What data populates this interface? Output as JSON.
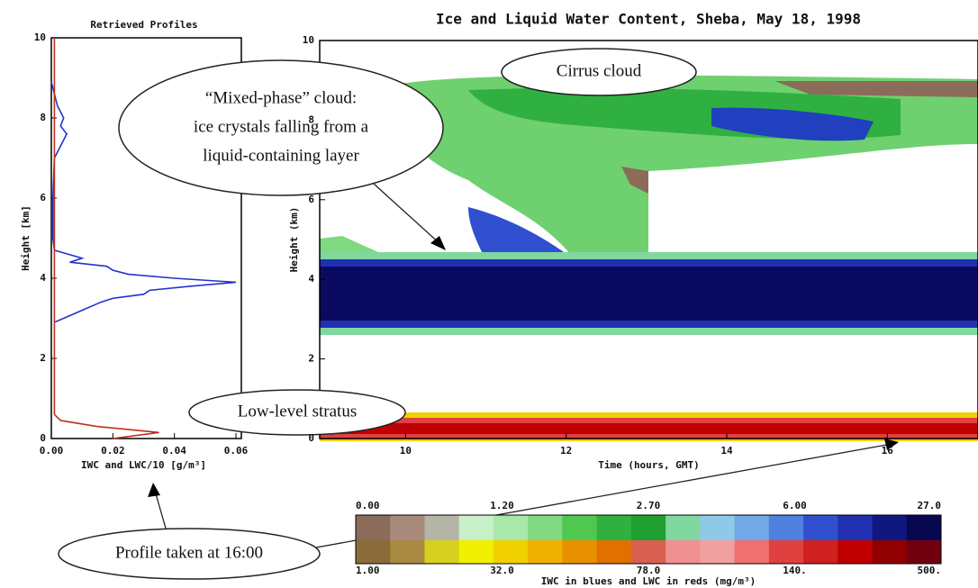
{
  "chart_data": [
    {
      "type": "line",
      "title": "Retrieved Profiles",
      "x_label": "IWC and LWC/10 [g/m³]",
      "y_label": "Height [km]",
      "xlim": [
        0,
        0.06
      ],
      "xticks": [
        {
          "value": 0,
          "label": "0.00"
        },
        0.02,
        0.04,
        0.06
      ],
      "ylim": [
        0,
        10
      ],
      "yticks": [
        0,
        2,
        4,
        6,
        8,
        10
      ],
      "y": [
        0,
        0.15,
        0.3,
        0.45,
        0.6,
        1,
        2,
        2.9,
        3.0,
        3.2,
        3.4,
        3.5,
        3.6,
        3.7,
        3.8,
        3.9,
        4.0,
        4.1,
        4.2,
        4.3,
        4.4,
        4.5,
        4.7,
        5,
        6,
        7,
        7.3,
        7.6,
        7.8,
        8,
        8.3,
        8.6,
        8.9,
        10
      ],
      "series": [
        {
          "color": "#2233cc",
          "values": [
            null,
            null,
            null,
            null,
            null,
            null,
            null,
            0.001,
            0.004,
            0.01,
            0.016,
            0.02,
            0.03,
            0.032,
            0.045,
            0.06,
            0.04,
            0.025,
            0.02,
            0.018,
            0.006,
            0.01,
            0.001,
            0.0005,
            0.0005,
            0.001,
            0.003,
            0.005,
            0.003,
            0.004,
            0.002,
            0.001,
            0,
            null
          ]
        },
        {
          "color": "#c03020",
          "values": [
            0.02,
            0.035,
            0.015,
            0.003,
            0.001,
            0.001,
            0.001,
            0.001,
            0.001,
            0.001,
            0.001,
            0.001,
            0.001,
            0.001,
            0.001,
            0.001,
            0.001,
            0.001,
            0.001,
            0.001,
            0.001,
            0.001,
            0.001,
            0.001,
            0.001,
            0.001,
            0.001,
            0.001,
            0.001,
            0.001,
            0.001,
            0.001,
            0.001,
            0.001
          ]
        }
      ]
    },
    {
      "type": "contour",
      "title": "Ice and Liquid Water Content, Sheba, May 18, 1998",
      "x_label": "Time (hours, GMT)",
      "y_label": "Height (km)",
      "xlim": [
        8.93,
        17.13
      ],
      "xticks": [
        10,
        12,
        14,
        16
      ],
      "ylim": [
        0,
        10
      ],
      "yticks": [
        0,
        2,
        4,
        6,
        8,
        10
      ],
      "colorbar": {
        "label": "IWC in blues and LWC in reds (mg/m³)",
        "ice_ticks": [
          {
            "value": 0,
            "label": "0.00"
          },
          {
            "value": 1.2,
            "label": "1.20"
          },
          {
            "value": 2.7,
            "label": "2.70"
          },
          {
            "value": 6,
            "label": "6.00"
          },
          {
            "value": 27,
            "label": "27.0"
          }
        ],
        "liquid_ticks": [
          {
            "value": 1,
            "label": "1.00"
          },
          {
            "value": 32,
            "label": "32.0"
          },
          {
            "value": 78,
            "label": "78.0"
          },
          {
            "value": 140,
            "label": "140."
          },
          {
            "value": 500,
            "label": "500."
          }
        ],
        "ice_colors": [
          "#8b6b5a",
          "#a88a7c",
          "#b5b5a5",
          "#c8f0c8",
          "#a8e8a8",
          "#80d880",
          "#50c850",
          "#30b040",
          "#20a030",
          "#80d8a0",
          "#90c8e8",
          "#70a8e8",
          "#5080e0",
          "#3050d0",
          "#2030b0",
          "#101880",
          "#080850"
        ],
        "liquid_colors": [
          "#8b6b3a",
          "#a88a40",
          "#d8d020",
          "#f0f000",
          "#f0d000",
          "#f0b000",
          "#e89000",
          "#e07000",
          "#d86050",
          "#f09090",
          "#f0a0a0",
          "#f07070",
          "#e04040",
          "#d02020",
          "#c00000",
          "#900000",
          "#700010"
        ]
      }
    }
  ],
  "annotations": {
    "cirrus": "Cirrus cloud",
    "mixed_phase": [
      "“Mixed-phase” cloud:",
      "ice crystals falling from a",
      "liquid-containing layer"
    ],
    "stratus": "Low-level stratus",
    "profile": "Profile taken at 16:00"
  }
}
